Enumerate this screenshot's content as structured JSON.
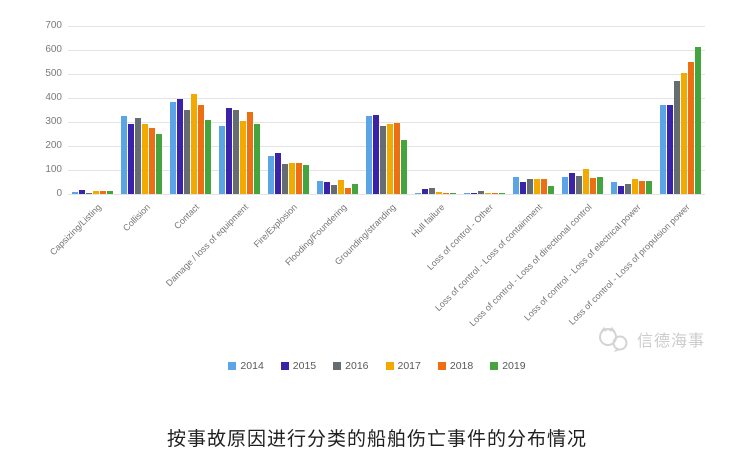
{
  "caption": "按事故原因进行分类的船舶伤亡事件的分布情况",
  "watermark": {
    "text": "信德海事",
    "color": "#cccccc"
  },
  "chart_data": {
    "type": "bar",
    "title": "",
    "xlabel": "",
    "ylabel": "",
    "ylim": [
      0,
      700
    ],
    "yticks": [
      0,
      100,
      200,
      300,
      400,
      500,
      600,
      700
    ],
    "grid": true,
    "legend_position": "bottom",
    "categories": [
      "Capsizing/Listing",
      "Collision",
      "Contact",
      "Damage / loss of equipment",
      "Fire/Explosion",
      "Flooding/Foundering",
      "Grounding/stranding",
      "Hull failure",
      "Loss of control - Other",
      "Loss of control - Loss of containment",
      "Loss of control - Loss of directional control",
      "Loss of control - Loss of electrical power",
      "Loss of control - Loss of propulsion power"
    ],
    "series": [
      {
        "name": "2014",
        "color": "#5BA4E6",
        "values": [
          10,
          325,
          385,
          285,
          160,
          55,
          325,
          6,
          3,
          72,
          70,
          51,
          370
        ]
      },
      {
        "name": "2015",
        "color": "#3A23A8",
        "values": [
          15,
          290,
          395,
          360,
          170,
          52,
          330,
          20,
          3,
          52,
          86,
          35,
          370
        ]
      },
      {
        "name": "2016",
        "color": "#656D73",
        "values": [
          6,
          315,
          350,
          350,
          125,
          38,
          285,
          25,
          14,
          62,
          75,
          40,
          470
        ]
      },
      {
        "name": "2017",
        "color": "#F2A900",
        "values": [
          12,
          290,
          415,
          305,
          130,
          58,
          290,
          8,
          2,
          64,
          103,
          61,
          505
        ]
      },
      {
        "name": "2018",
        "color": "#EC6F13",
        "values": [
          14,
          275,
          370,
          340,
          130,
          26,
          295,
          5,
          6,
          64,
          65,
          55,
          550
        ]
      },
      {
        "name": "2019",
        "color": "#44A43E",
        "values": [
          12,
          250,
          310,
          290,
          120,
          40,
          225,
          4,
          2,
          34,
          72,
          55,
          612
        ]
      }
    ]
  }
}
